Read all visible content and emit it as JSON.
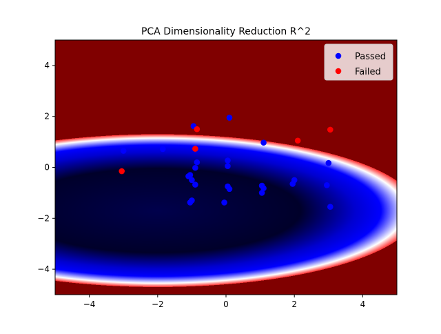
{
  "chart_data": {
    "type": "scatter",
    "title": "PCA Dimensionality Reduction R^2",
    "xlabel": "",
    "ylabel": "",
    "xlim": [
      -5,
      5
    ],
    "ylim": [
      -5,
      5
    ],
    "x_ticks": [
      -4,
      -2,
      0,
      2,
      4
    ],
    "y_ticks": [
      -4,
      -2,
      0,
      2,
      4
    ],
    "grid": false,
    "legend_placement": "top-right",
    "background": {
      "type": "heatmap",
      "colormap": "seismic",
      "description_colors": [
        "#00004c",
        "#0000ff",
        "#ffffff",
        "#ff0000",
        "#800000"
      ],
      "ellipse_center": [
        -2,
        -1.7
      ],
      "ellipse_semi_axes": [
        7.6,
        3.0
      ]
    },
    "series": [
      {
        "name": "Passed",
        "color": "#0000ff",
        "points": [
          [
            -3,
            0.65
          ],
          [
            -1.85,
            0.72
          ],
          [
            -0.95,
            1.62
          ],
          [
            0.1,
            1.95
          ],
          [
            1.1,
            0.97
          ],
          [
            -0.85,
            0.2
          ],
          [
            -0.9,
            -0.02
          ],
          [
            -1.05,
            -0.3
          ],
          [
            -1.0,
            -0.5
          ],
          [
            -0.9,
            -0.68
          ],
          [
            -1.1,
            -0.35
          ],
          [
            -1.0,
            -1.3
          ],
          [
            -1.05,
            -1.38
          ],
          [
            0.05,
            0.27
          ],
          [
            0.05,
            0.05
          ],
          [
            0.05,
            -0.75
          ],
          [
            0.1,
            -0.85
          ],
          [
            -0.05,
            -1.38
          ],
          [
            1.05,
            -0.72
          ],
          [
            1.1,
            -0.82
          ],
          [
            1.05,
            -1.0
          ],
          [
            2.0,
            -0.5
          ],
          [
            1.95,
            -0.65
          ],
          [
            3.0,
            0.17
          ],
          [
            2.95,
            -0.7
          ],
          [
            3.05,
            -1.55
          ]
        ]
      },
      {
        "name": "Failed",
        "color": "#ff0000",
        "points": [
          [
            -3.05,
            -0.15
          ],
          [
            -0.85,
            1.5
          ],
          [
            -0.9,
            0.73
          ],
          [
            2.1,
            1.05
          ],
          [
            3.05,
            1.48
          ]
        ]
      }
    ]
  }
}
